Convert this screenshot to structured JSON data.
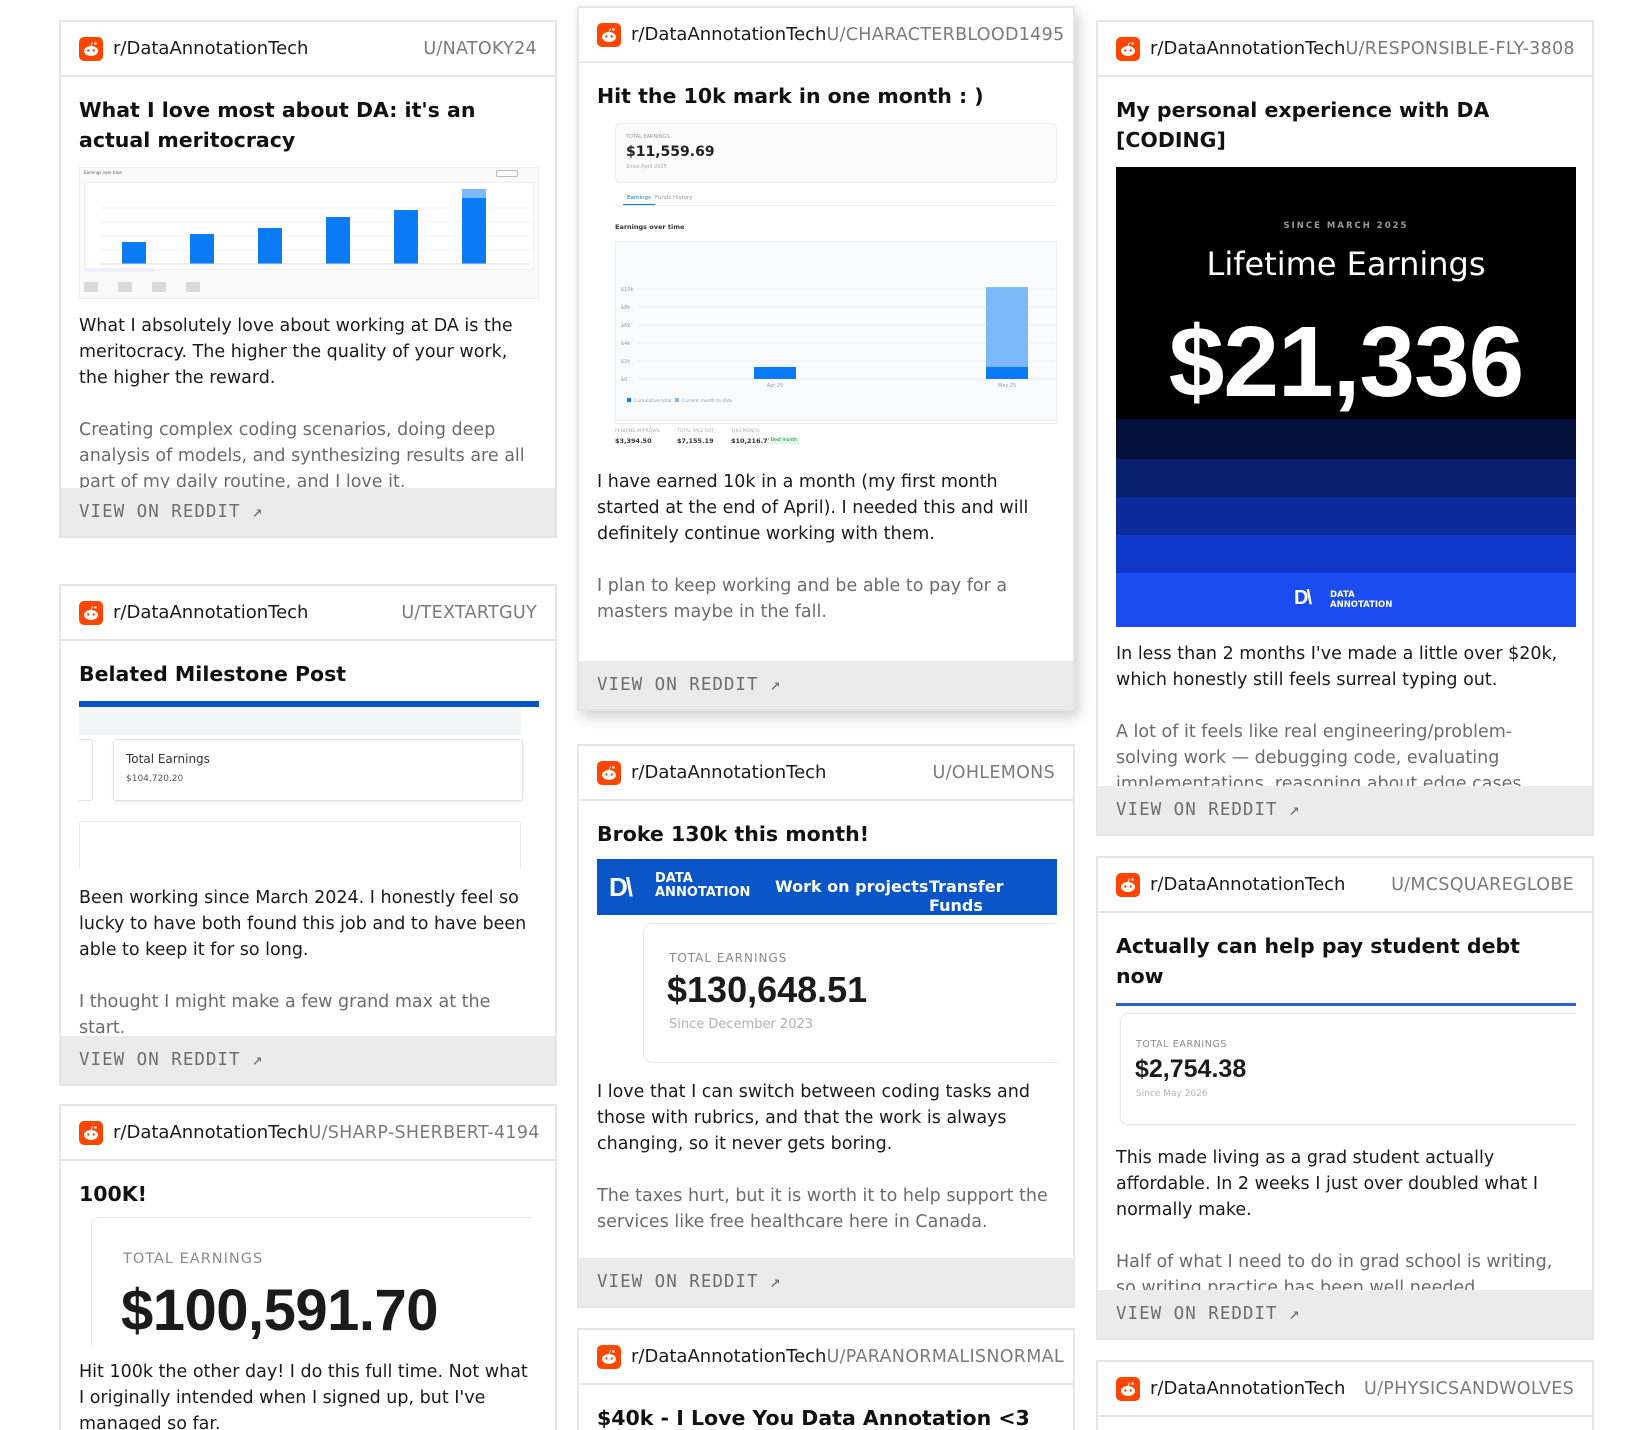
{
  "colors": {
    "reddit": "#ff4500",
    "da_blue": "#0a56c8",
    "bar_blue": "#0a7bf5",
    "bar_light": "#7bb9fb"
  },
  "view_label": "VIEW ON REDDIT ↗",
  "cards": {
    "c1": {
      "subreddit": "r/DataAnnotationTech",
      "author": "U/NATOKY24",
      "title": "What I love most about DA: it's an actual meritocracy",
      "p1": "What I absolutely love about working at DA is the meritocracy. The higher the quality of your work, the higher the reward.",
      "p2": "Creating complex coding scenarios, doing deep analysis of models, and synthesizing results are all part of my daily routine, and I love it.",
      "chart_heading": "Earnings over time",
      "chart_data": {
        "type": "bar",
        "values": [
          22,
          30,
          36,
          47,
          54,
          66
        ],
        "extra_top": [
          0,
          0,
          0,
          0,
          0,
          9
        ]
      }
    },
    "c2": {
      "subreddit": "r/DataAnnotationTech",
      "author": "U/CHARACTERBLOOD1495",
      "title": "Hit the 10k mark in one month : )",
      "p1": "I have earned 10k in a month (my first month started at the end of April). I needed this and will definitely continue working with them.",
      "p2": "I plan to keep working and be able to pay for a masters maybe in the fall.",
      "shot": {
        "total_label": "TOTAL EARNINGS",
        "total": "$11,559.69",
        "since": "Since April 2025",
        "tab1": "Earnings",
        "tab2": "Funds History",
        "chart_title": "Earnings over time",
        "ticks": [
          "$10k",
          "$8k",
          "$6k",
          "$4k",
          "$2k",
          "$0"
        ],
        "xlabels": [
          "Apr 25",
          "May 25"
        ],
        "legend1": "Cumulative total",
        "legend2": "Current month to date",
        "f1_label": "PENDING APPROVAL",
        "f1": "$3,394.50",
        "f2_label": "TOTAL PAID OUT",
        "f2": "$7,155.19",
        "f3_label": "THIS MONTH",
        "f3": "$10,216.77",
        "badge": "Best month"
      },
      "chart_data": {
        "type": "bar",
        "categories": [
          "Apr 25",
          "May 25"
        ],
        "series": [
          {
            "values": [
              1340,
              1340
            ]
          },
          {
            "values": [
              0,
              10216.77
            ]
          }
        ],
        "ylim": [
          0,
          12000
        ]
      }
    },
    "c3": {
      "subreddit": "r/DataAnnotationTech",
      "author": "U/RESPONSIBLE-FLY-3808",
      "title": "My personal experience with DA [CODING]",
      "p1": "In less than 2 months I've made a little over $20k, which honestly still feels surreal typing out.",
      "p2": "A lot of it feels like real engineering/problem-solving work — debugging code, evaluating implementations, reasoning about edge cases.",
      "promo": {
        "since": "SINCE MARCH 2025",
        "heading": "Lifetime Earnings",
        "amount": "$21,336",
        "logo_l1": "DATA",
        "logo_l2": "ANNOTATION"
      }
    },
    "c4": {
      "subreddit": "r/DataAnnotationTech",
      "author": "U/TEXTARTGUY",
      "title": "Belated Milestone Post",
      "p1": "Been working since March 2024. I honestly feel so lucky to have both found this job and to have been able to keep it for so long.",
      "p2": "I thought I might make a few grand max at the start.",
      "shot": {
        "label": "Total Earnings",
        "amount": "$104,720.20"
      }
    },
    "c5": {
      "subreddit": "r/DataAnnotationTech",
      "author": "U/OHLEMONS",
      "title": "Broke 130k this month!",
      "p1": "I love that I can switch between coding tasks and those with rubrics, and that the work is always changing, so it never gets boring.",
      "p2": "The taxes hurt, but it is worth it to help support the services like free healthcare here in Canada.",
      "shot": {
        "logo_l1": "DATA",
        "logo_l2": "ANNOTATION",
        "nav1": "Work on projects",
        "nav2": "Transfer Funds",
        "label": "TOTAL EARNINGS",
        "amount": "$130,648.51",
        "since": "Since December 2023"
      }
    },
    "c6": {
      "subreddit": "r/DataAnnotationTech",
      "author": "U/MCSQUAREGLOBE",
      "title": "Actually can help pay student debt now",
      "p1": "This made living as a grad student actually affordable. In 2 weeks I just over doubled what I normally make.",
      "p2": "Half of what I need to do in grad school is writing, so writing practice has been well needed.",
      "shot": {
        "label": "TOTAL EARNINGS",
        "amount": "$2,754.38",
        "since": "Since May 2026"
      }
    },
    "c7": {
      "subreddit": "r/DataAnnotationTech",
      "author": "U/SHARP-SHERBERT-4194",
      "title": "100K!",
      "p1": "Hit 100k the other day! I do this full time. Not what I originally intended when I signed up, but I've managed so far.",
      "shot": {
        "label": "TOTAL EARNINGS",
        "amount": "$100,591.70"
      }
    },
    "c8": {
      "subreddit": "r/DataAnnotationTech",
      "author": "U/PARANORMALISNORMAL",
      "title": "$40k - I Love You Data Annotation <3"
    },
    "c9": {
      "subreddit": "r/DataAnnotationTech",
      "author": "U/PHYSICSANDWOLVES"
    }
  }
}
